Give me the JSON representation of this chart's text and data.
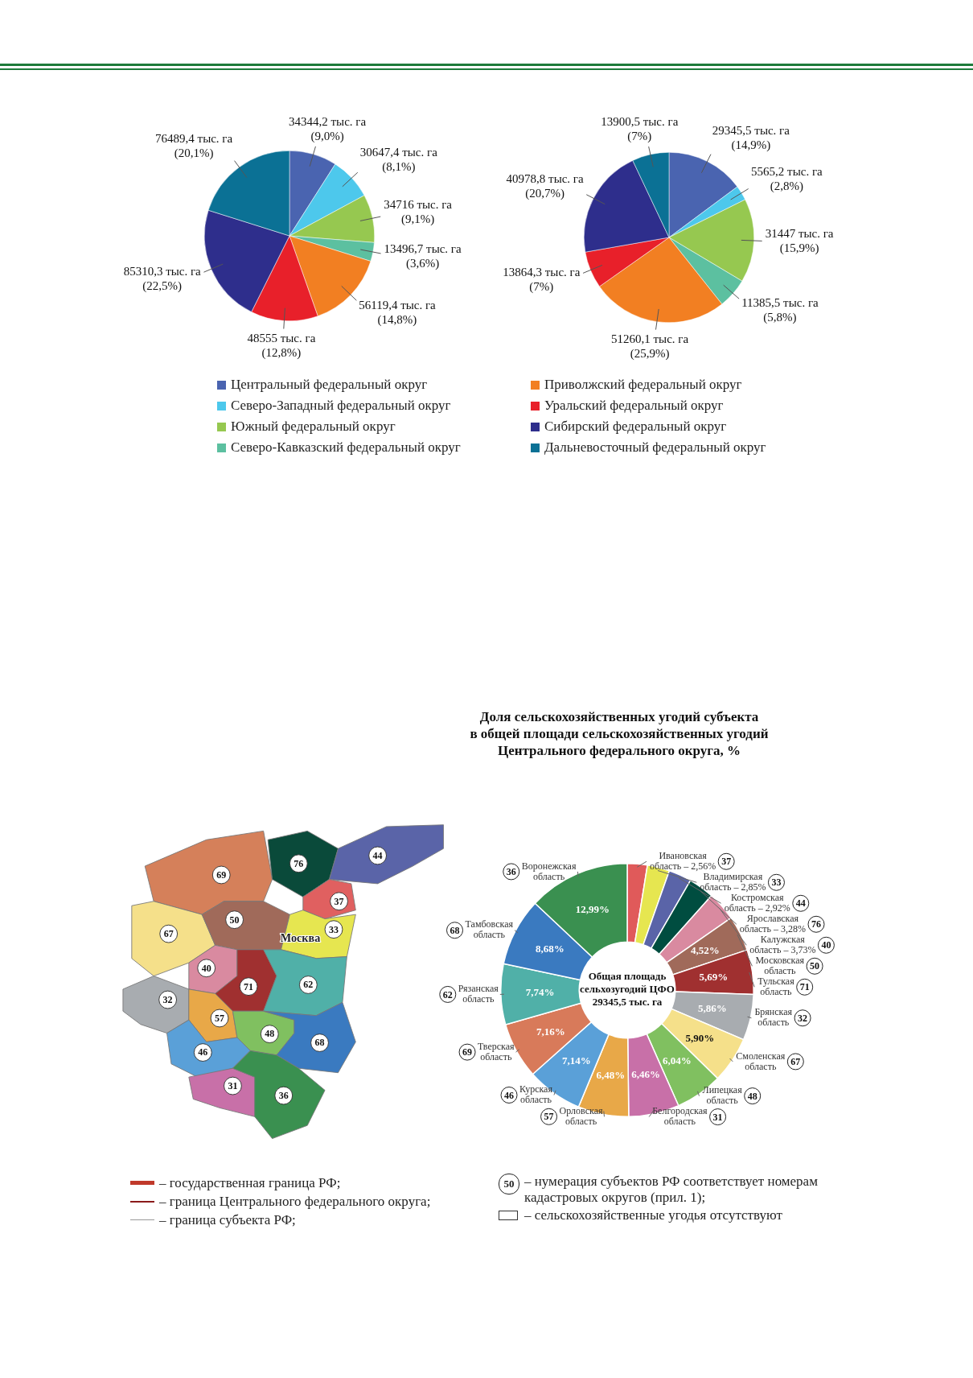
{
  "chart_data": [
    {
      "type": "pie",
      "categories": [
        "Центральный федеральный округ",
        "Северо-Западный федеральный округ",
        "Южный федеральный округ",
        "Северо-Кавказский федеральный округ",
        "Приволжский федеральный округ",
        "Уральский федеральный округ",
        "Сибирский федеральный округ",
        "Дальневосточный федеральный округ"
      ],
      "values": [
        34344.2,
        30647.4,
        34716,
        13496.7,
        56119.4,
        48555,
        85310.3,
        76489.4
      ],
      "colors": [
        "#4a64b0",
        "#4dc8ec",
        "#96c850",
        "#5cc0a0",
        "#f27f22",
        "#e8202a",
        "#2e2e8c",
        "#0b7195"
      ],
      "value_labels": [
        "34344,2 тыс. га\n(9,0%)",
        "30647,4 тыс. га\n(8,1%)",
        "34716 тыс. га\n(9,1%)",
        "13496,7 тыс. га\n(3,6%)",
        "56119,4 тыс. га\n(14,8%)",
        "48555 тыс. га\n(12,8%)",
        "85310,3 тыс. га\n(22,5%)",
        "76489,4 тыс. га\n(20,1%)"
      ],
      "legend": "bottom"
    },
    {
      "type": "pie",
      "categories": [
        null,
        null,
        null,
        null,
        null,
        null,
        null,
        null
      ],
      "values": [
        29345.5,
        5565.2,
        31447,
        11385.5,
        51260.1,
        13864.3,
        40978.8,
        13900.5
      ],
      "colors": [
        "#4a64b0",
        "#4dc8ec",
        "#96c850",
        "#5cc0a0",
        "#f27f22",
        "#e8202a",
        "#2e2e8c",
        "#0b7195"
      ],
      "value_labels": [
        "29345,5 тыс. га\n(14,9%)",
        "5565,2 тыс. га\n(2,8%)",
        "31447 тыс. га\n(15,9%)",
        "11385,5 тыс. га\n(5,8%)",
        "51260,1 тыс. га\n(25,9%)",
        "13864,3 тыс. га\n(7%)",
        "40978,8 тыс. га\n(20,7%)",
        "13900,5 тыс. га\n(7%)"
      ]
    },
    {
      "type": "donut",
      "title": "Доля сельскохозяйственных угодий субъекта\nв общей площади сельскохозяйственных угодий\nЦентрального федерального округа, %",
      "categories": [
        "Ивановская область",
        "Владимирская область",
        "Костромская область",
        "Ярославская область",
        "Калужская область",
        "Московская область",
        "Тульская область",
        "Брянская область",
        "Смоленская область",
        "Липецкая область",
        "Белгородская область",
        "Орловская область",
        "Курская область",
        "Тверская область",
        "Рязанская область",
        "Тамбовская область",
        "Воронежская область"
      ],
      "values": [
        2.56,
        2.85,
        2.92,
        3.28,
        3.73,
        4.52,
        5.69,
        5.86,
        5.9,
        6.04,
        6.46,
        6.48,
        7.14,
        7.16,
        7.74,
        8.68,
        12.99
      ],
      "colors": [
        "#e05a5a",
        "#e6e650",
        "#5a64a8",
        "#004d40",
        "#d98aa0",
        "#a06a5a",
        "#a03030",
        "#a8acb0",
        "#f5e08a",
        "#80c060",
        "#c870a8",
        "#e8a848",
        "#5aa0d8",
        "#d87a5a",
        "#50b0a8",
        "#3a7ac0",
        "#3a9050"
      ],
      "value_labels": [
        "2,56%",
        "2,85%",
        "2,92%",
        "3,28%",
        "3,73%",
        "4,52%",
        "5,69%",
        "5,86%",
        "5,90%",
        "6,04%",
        "6,46%",
        "6,48%",
        "7,14%",
        "7,16%",
        "7,74%",
        "8,68%",
        "12,99%"
      ],
      "annotations": [
        "Общая площадь\nсельхозугодий ЦФО\n29345,5 тыс. га",
        {
          "text": "37",
          "x": "Ивановская область"
        },
        {
          "text": "33",
          "x": "Владимирская область"
        },
        {
          "text": "44",
          "x": "Костромская область"
        },
        {
          "text": "76",
          "x": "Ярославская область"
        },
        {
          "text": "40",
          "x": "Калужская область"
        },
        {
          "text": "50",
          "x": "Московская область"
        },
        {
          "text": "71",
          "x": "Тульская область"
        },
        {
          "text": "32",
          "x": "Брянская область"
        },
        {
          "text": "67",
          "x": "Смоленская область"
        },
        {
          "text": "48",
          "x": "Липецкая область"
        },
        {
          "text": "31",
          "x": "Белгородская область"
        },
        {
          "text": "57",
          "x": "Орловская область"
        },
        {
          "text": "46",
          "x": "Курская область"
        },
        {
          "text": "69",
          "x": "Тверская область"
        },
        {
          "text": "62",
          "x": "Рязанская область"
        },
        {
          "text": "68",
          "x": "Тамбовская область"
        },
        {
          "text": "36",
          "x": "Воронежская область"
        }
      ]
    },
    {
      "type": "other",
      "annotations": [
        "69",
        "76",
        "44",
        "67",
        "50",
        "37",
        "33",
        "Москва",
        "40",
        "71",
        "62",
        "32",
        "57",
        "48",
        "68",
        "46",
        "31",
        "36",
        "– государственная граница РФ;",
        "– граница Центрального федерального округа;",
        "– граница субъекта РФ;",
        "50",
        "– нумерация субъектов РФ соответствует номерам кадастровых округов (прил. 1);",
        "– сельскохозяйственные угодья отсутствуют"
      ]
    }
  ]
}
